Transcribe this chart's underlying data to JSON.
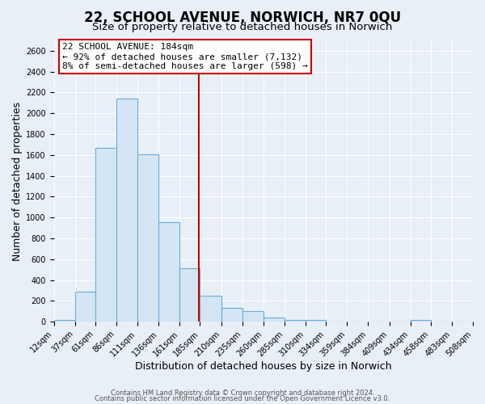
{
  "title": "22, SCHOOL AVENUE, NORWICH, NR7 0QU",
  "subtitle": "Size of property relative to detached houses in Norwich",
  "xlabel": "Distribution of detached houses by size in Norwich",
  "ylabel": "Number of detached properties",
  "bin_edges": [
    12,
    37,
    61,
    86,
    111,
    136,
    161,
    185,
    210,
    235,
    260,
    285,
    310,
    334,
    359,
    384,
    409,
    434,
    458,
    483,
    508
  ],
  "bin_counts": [
    20,
    290,
    1670,
    2140,
    1610,
    955,
    510,
    250,
    130,
    100,
    40,
    15,
    15,
    5,
    5,
    5,
    5,
    20,
    5,
    5
  ],
  "bar_facecolor": "#d4e6f5",
  "bar_edgecolor": "#6aaed6",
  "property_value": 184,
  "vline_color": "#cc0000",
  "annotation_title": "22 SCHOOL AVENUE: 184sqm",
  "annotation_line1": "← 92% of detached houses are smaller (7,132)",
  "annotation_line2": "8% of semi-detached houses are larger (598) →",
  "annotation_box_edgecolor": "#cc0000",
  "annotation_box_facecolor": "white",
  "ylim": [
    0,
    2700
  ],
  "yticks": [
    0,
    200,
    400,
    600,
    800,
    1000,
    1200,
    1400,
    1600,
    1800,
    2000,
    2200,
    2400,
    2600
  ],
  "tick_labels": [
    "12sqm",
    "37sqm",
    "61sqm",
    "86sqm",
    "111sqm",
    "136sqm",
    "161sqm",
    "185sqm",
    "210sqm",
    "235sqm",
    "260sqm",
    "285sqm",
    "310sqm",
    "334sqm",
    "359sqm",
    "384sqm",
    "409sqm",
    "434sqm",
    "458sqm",
    "483sqm",
    "508sqm"
  ],
  "footer1": "Contains HM Land Registry data © Crown copyright and database right 2024.",
  "footer2": "Contains public sector information licensed under the Open Government Licence v3.0.",
  "background_color": "#e8eff6",
  "grid_color": "#ffffff",
  "title_fontsize": 12,
  "subtitle_fontsize": 9.5,
  "axis_label_fontsize": 9,
  "tick_fontsize": 7,
  "footer_fontsize": 6,
  "annotation_fontsize": 8
}
